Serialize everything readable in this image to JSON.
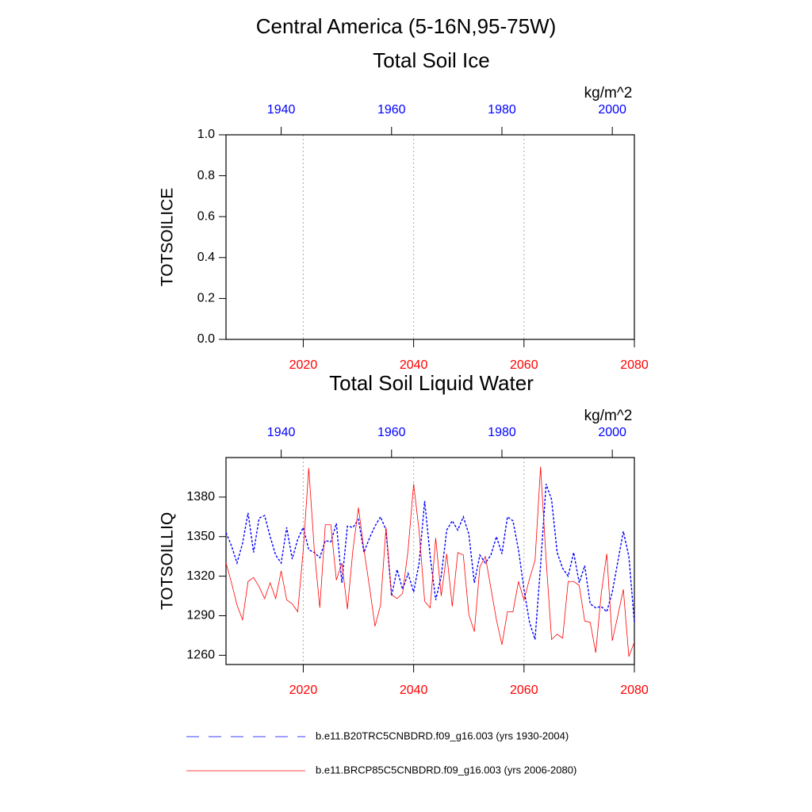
{
  "title": "Central America (5-16N,95-75W)",
  "chart_data": [
    {
      "type": "line",
      "title": "Total Soil Ice",
      "units": "kg/m^2",
      "ylabel": "TOTSOILICE",
      "ylim": [
        0,
        1
      ],
      "yticks": [
        {
          "value": 0,
          "label": "0.0"
        },
        0.2,
        0.4,
        0.6,
        0.8,
        {
          "value": 1,
          "label": "1.0"
        }
      ],
      "xlim": [
        2006,
        2080
      ],
      "xticks": [
        2020,
        2040,
        2060,
        2080
      ],
      "x2lim": [
        1930,
        2004
      ],
      "x2ticks": [
        1940,
        1960,
        1980,
        2000
      ],
      "grid": true,
      "series": []
    },
    {
      "type": "line",
      "title": "Total Soil Liquid Water",
      "units": "kg/m^2",
      "ylabel": "TOTSOILLIQ",
      "ylim": [
        1253,
        1410
      ],
      "yticks": [
        1260,
        1290,
        1320,
        1350,
        1380
      ],
      "xlim": [
        2006,
        2080
      ],
      "xticks": [
        2020,
        2040,
        2060,
        2080
      ],
      "x2lim": [
        1930,
        2004
      ],
      "x2ticks": [
        1940,
        1960,
        1980,
        2000
      ],
      "grid": true,
      "series": [
        {
          "name": "b.e11.B20TRC5CNBDRD.f09_g16.003 (yrs 1930-2004)",
          "color": "#0000ff",
          "dashed": true,
          "axis": "x2",
          "x": [
            1930,
            1931,
            1932,
            1933,
            1934,
            1935,
            1936,
            1937,
            1938,
            1939,
            1940,
            1941,
            1942,
            1943,
            1944,
            1945,
            1946,
            1947,
            1948,
            1949,
            1950,
            1951,
            1952,
            1953,
            1954,
            1955,
            1956,
            1957,
            1958,
            1959,
            1960,
            1961,
            1962,
            1963,
            1964,
            1965,
            1966,
            1967,
            1968,
            1969,
            1970,
            1971,
            1972,
            1973,
            1974,
            1975,
            1976,
            1977,
            1978,
            1979,
            1980,
            1981,
            1982,
            1983,
            1984,
            1985,
            1986,
            1987,
            1988,
            1989,
            1990,
            1991,
            1992,
            1993,
            1994,
            1995,
            1996,
            1997,
            1998,
            1999,
            2000,
            2001,
            2002,
            2003,
            2004
          ],
          "values": [
            1353,
            1343,
            1330,
            1345,
            1368,
            1338,
            1364,
            1366,
            1350,
            1336,
            1330,
            1357,
            1333,
            1348,
            1357,
            1340,
            1338,
            1334,
            1347,
            1346,
            1360,
            1315,
            1358,
            1357,
            1363,
            1338,
            1349,
            1358,
            1365,
            1355,
            1305,
            1325,
            1310,
            1322,
            1308,
            1330,
            1377,
            1335,
            1302,
            1320,
            1355,
            1362,
            1355,
            1365,
            1352,
            1315,
            1336,
            1330,
            1336,
            1350,
            1337,
            1365,
            1362,
            1340,
            1310,
            1285,
            1272,
            1328,
            1390,
            1378,
            1338,
            1326,
            1320,
            1338,
            1315,
            1328,
            1299,
            1296,
            1297,
            1293,
            1308,
            1331,
            1354,
            1335,
            1285
          ]
        },
        {
          "name": "b.e11.BRCP85C5CNBDRD.f09_g16.003 (yrs 2006-2080)",
          "color": "#ff0000",
          "dashed": false,
          "x": [
            2006,
            2007,
            2008,
            2009,
            2010,
            2011,
            2012,
            2013,
            2014,
            2015,
            2016,
            2017,
            2018,
            2019,
            2020,
            2021,
            2022,
            2023,
            2024,
            2025,
            2026,
            2027,
            2028,
            2029,
            2030,
            2031,
            2032,
            2033,
            2034,
            2035,
            2036,
            2037,
            2038,
            2039,
            2040,
            2041,
            2042,
            2043,
            2044,
            2045,
            2046,
            2047,
            2048,
            2049,
            2050,
            2051,
            2052,
            2053,
            2054,
            2055,
            2056,
            2057,
            2058,
            2059,
            2060,
            2061,
            2062,
            2063,
            2064,
            2065,
            2066,
            2067,
            2068,
            2069,
            2070,
            2071,
            2072,
            2073,
            2074,
            2075,
            2076,
            2077,
            2078,
            2079,
            2080
          ],
          "values": [
            1330,
            1315,
            1298,
            1287,
            1316,
            1319,
            1312,
            1303,
            1315,
            1303,
            1324,
            1302,
            1299,
            1293,
            1340,
            1402,
            1340,
            1296,
            1359,
            1359,
            1317,
            1330,
            1295,
            1340,
            1372,
            1340,
            1312,
            1282,
            1298,
            1357,
            1306,
            1303,
            1307,
            1340,
            1390,
            1354,
            1301,
            1296,
            1349,
            1305,
            1337,
            1297,
            1338,
            1336,
            1291,
            1278,
            1327,
            1335,
            1311,
            1287,
            1268,
            1293,
            1293,
            1316,
            1302,
            1318,
            1332,
            1403,
            1333,
            1272,
            1276,
            1273,
            1316,
            1316,
            1313,
            1286,
            1285,
            1262,
            1307,
            1337,
            1271,
            1290,
            1310,
            1259,
            1270
          ]
        }
      ]
    }
  ]
}
